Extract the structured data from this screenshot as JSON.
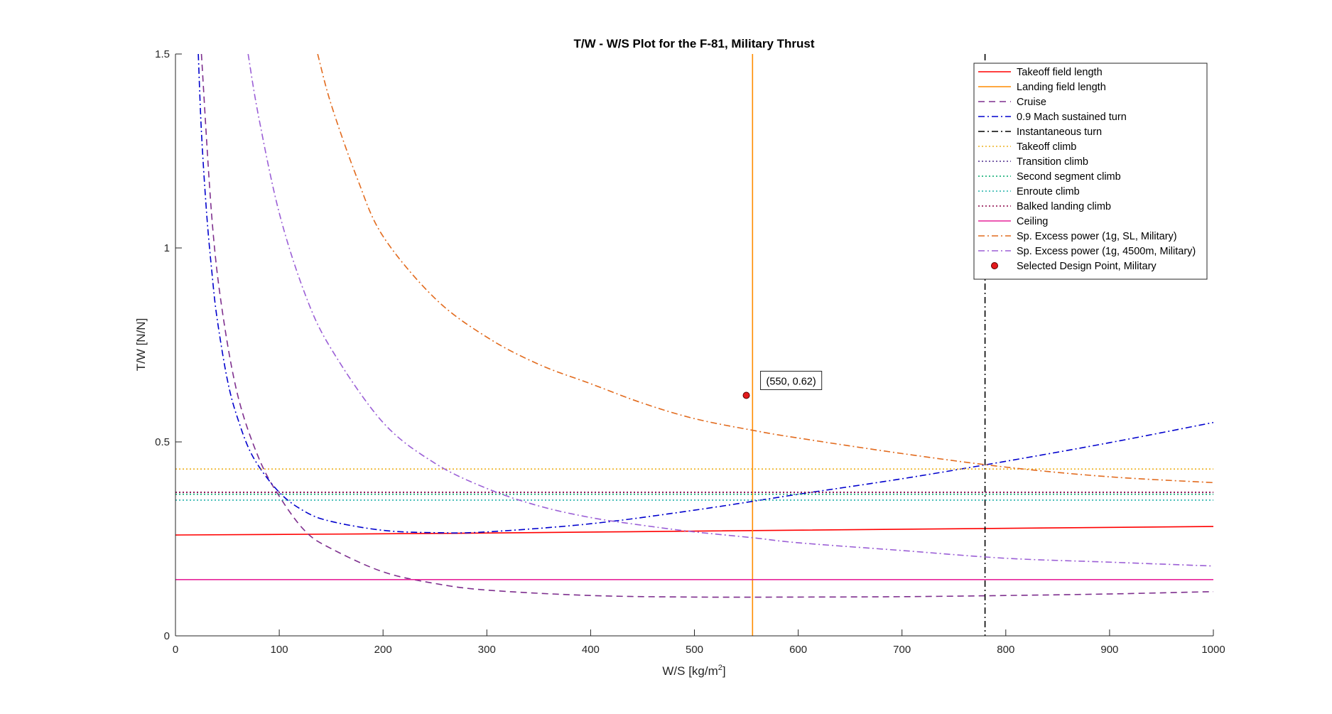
{
  "chart_data": {
    "type": "line",
    "title": "T/W - W/S Plot for the F-81, Military Thrust",
    "xlabel": "W/S [kg/m",
    "xlabel_sup": "2",
    "xlabel_suffix": "]",
    "ylabel": "T/W [N/N]",
    "xlim": [
      0,
      1000
    ],
    "ylim": [
      0,
      1.5
    ],
    "x_ticks": [
      "0",
      "100",
      "200",
      "300",
      "400",
      "500",
      "600",
      "700",
      "800",
      "900",
      "1000"
    ],
    "y_ticks": [
      "0",
      "0.5",
      "1",
      "1.5"
    ],
    "x_tick_values": [
      0,
      100,
      200,
      300,
      400,
      500,
      600,
      700,
      800,
      900,
      1000
    ],
    "y_tick_values": [
      0,
      0.5,
      1,
      1.5
    ],
    "grid": false,
    "legend_position": "top-right",
    "series": [
      {
        "name": "Takeoff field length",
        "color": "#ff0000",
        "style": "solid",
        "x": [
          0,
          250,
          500,
          750,
          1000
        ],
        "y": [
          0.26,
          0.264,
          0.27,
          0.276,
          0.282
        ]
      },
      {
        "name": "Landing field length",
        "color": "#ff8c00",
        "style": "solid",
        "vertical_x": 556
      },
      {
        "name": "Cruise",
        "color": "#7e2f8e",
        "style": "dashed",
        "x": [
          25,
          35,
          45,
          60,
          80,
          100,
          125,
          150,
          200,
          250,
          300,
          400,
          500,
          600,
          700,
          800,
          900,
          1000
        ],
        "y": [
          1.5,
          1.08,
          0.84,
          0.62,
          0.46,
          0.36,
          0.27,
          0.225,
          0.165,
          0.135,
          0.118,
          0.104,
          0.1,
          0.1,
          0.101,
          0.104,
          0.108,
          0.114
        ]
      },
      {
        "name": "0.9 Mach sustained turn",
        "color": "#0000cd",
        "style": "dashdot",
        "x": [
          22,
          25,
          30,
          35,
          40,
          50,
          60,
          75,
          100,
          125,
          150,
          200,
          250,
          300,
          400,
          500,
          600,
          700,
          800,
          900,
          1000
        ],
        "y": [
          1.5,
          1.3,
          1.09,
          0.94,
          0.82,
          0.66,
          0.56,
          0.46,
          0.37,
          0.32,
          0.295,
          0.272,
          0.266,
          0.268,
          0.289,
          0.324,
          0.365,
          0.405,
          0.45,
          0.498,
          0.55
        ]
      },
      {
        "name": "Instantaneous turn",
        "color": "#000000",
        "style": "dashdot",
        "vertical_x": 780
      },
      {
        "name": "Takeoff climb",
        "color": "#edb120",
        "style": "dotted",
        "constant_y": 0.43
      },
      {
        "name": "Transition climb",
        "color": "#4b2a8c",
        "style": "dotted",
        "constant_y": 0.37
      },
      {
        "name": "Second segment climb",
        "color": "#00a86b",
        "style": "dotted",
        "constant_y": 0.365
      },
      {
        "name": "Enroute climb",
        "color": "#20b2aa",
        "style": "dotted",
        "constant_y": 0.35
      },
      {
        "name": "Balked landing climb",
        "color": "#8b0045",
        "style": "dotted",
        "constant_y": 0.37
      },
      {
        "name": "Ceiling",
        "color": "#e6249a",
        "style": "solid",
        "constant_y": 0.145
      },
      {
        "name": "Sp. Excess power (1g, SL, Military)",
        "color": "#e26b1e",
        "style": "dashdot",
        "x": [
          137,
          150,
          175,
          200,
          250,
          300,
          350,
          400,
          450,
          500,
          556,
          600,
          700,
          800,
          900,
          1000
        ],
        "y": [
          1.5,
          1.37,
          1.18,
          1.03,
          0.87,
          0.77,
          0.7,
          0.65,
          0.6,
          0.56,
          0.53,
          0.51,
          0.47,
          0.435,
          0.41,
          0.395
        ]
      },
      {
        "name": "Sp. Excess power (1g, 4500m, Military)",
        "color": "#9b5fd6",
        "style": "dashdot",
        "x": [
          70,
          80,
          100,
          125,
          150,
          200,
          250,
          300,
          350,
          400,
          450,
          500,
          556,
          600,
          700,
          800,
          900,
          1000
        ],
        "y": [
          1.5,
          1.34,
          1.09,
          0.88,
          0.74,
          0.55,
          0.445,
          0.38,
          0.335,
          0.305,
          0.285,
          0.268,
          0.253,
          0.24,
          0.22,
          0.2,
          0.19,
          0.18
        ]
      }
    ],
    "design_point": {
      "name": "Selected Design Point, Military",
      "x": 550,
      "y": 0.62,
      "label": "(550, 0.62)",
      "color": "#e31a1c"
    }
  }
}
